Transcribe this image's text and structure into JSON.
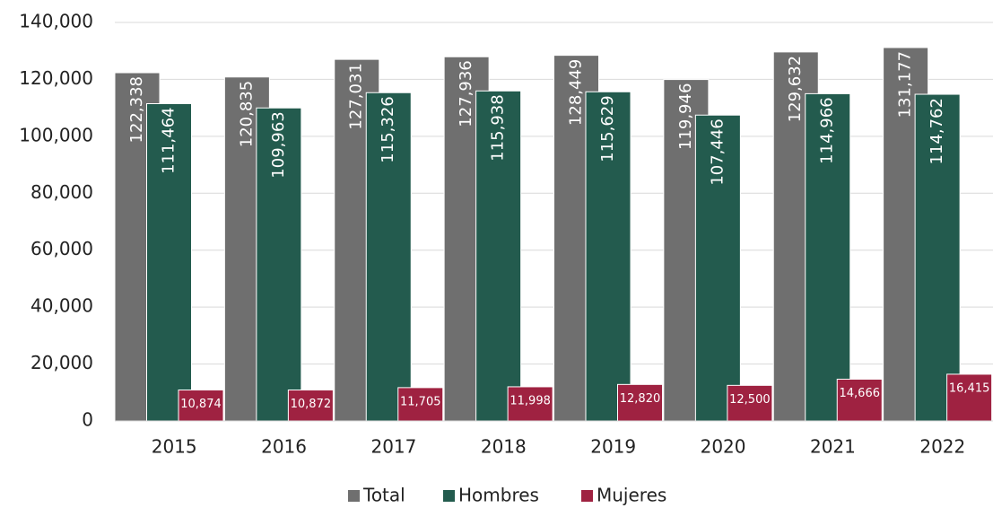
{
  "chart_data": {
    "type": "bar",
    "categories": [
      "2015",
      "2016",
      "2017",
      "2018",
      "2019",
      "2020",
      "2021",
      "2022"
    ],
    "series": [
      {
        "name": "Total",
        "color": "#6f6f6f",
        "values": [
          122338,
          120835,
          127031,
          127936,
          128449,
          119946,
          129632,
          131177
        ],
        "value_labels": [
          "122,338",
          "120,835",
          "127,031",
          "127,936",
          "128,449",
          "119,946",
          "129,632",
          "131,177"
        ]
      },
      {
        "name": "Hombres",
        "color": "#235b4e",
        "values": [
          111464,
          109963,
          115326,
          115938,
          115629,
          107446,
          114966,
          114762
        ],
        "value_labels": [
          "111,464",
          "109,963",
          "115,326",
          "115,938",
          "115,629",
          "107,446",
          "114,966",
          "114,762"
        ]
      },
      {
        "name": "Mujeres",
        "color": "#9f2241",
        "values": [
          10874,
          10872,
          11705,
          11998,
          12820,
          12500,
          14666,
          16415
        ],
        "value_labels": [
          "10,874",
          "10,872",
          "11,705",
          "11,998",
          "12,820",
          "12,500",
          "14,666",
          "16,415"
        ]
      }
    ],
    "ylim": [
      0,
      140000
    ],
    "yticks": [
      0,
      {
        "value": 20000,
        "label": "20,000"
      },
      {
        "value": 40000,
        "label": "40,000"
      },
      {
        "value": 60000,
        "label": "60,000"
      },
      {
        "value": 80000,
        "label": "80,000"
      },
      {
        "value": 100000,
        "label": "100,000"
      },
      {
        "value": 120000,
        "label": "120,000"
      },
      {
        "value": 140000,
        "label": "140,000"
      }
    ],
    "grid": true,
    "legend": "bottom"
  }
}
